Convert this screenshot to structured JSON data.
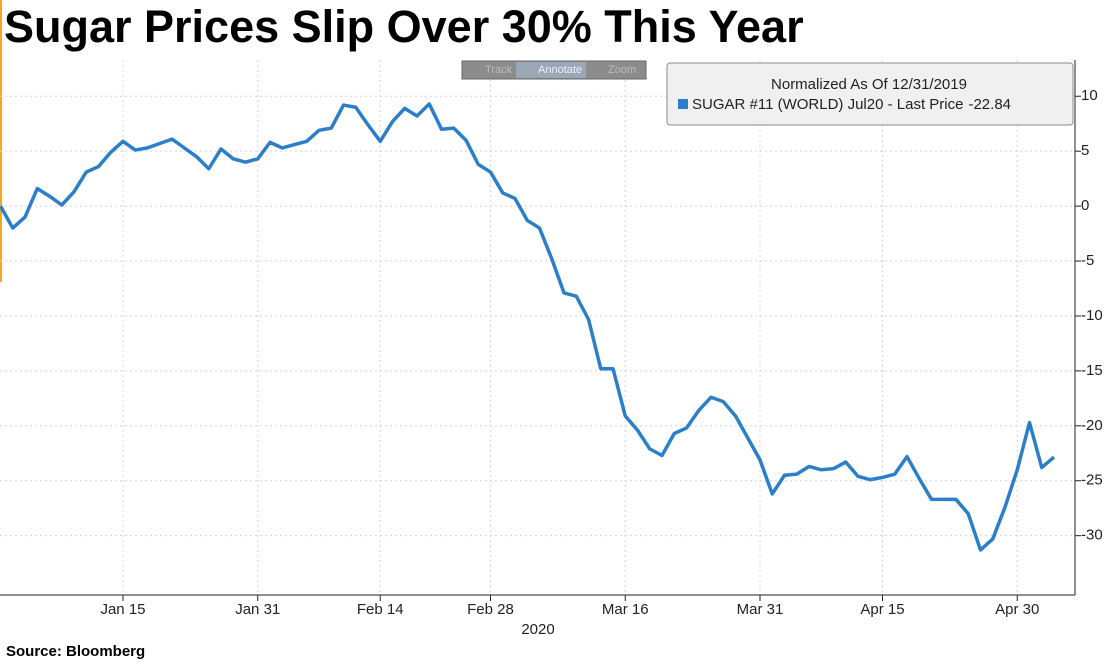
{
  "chart_data": {
    "type": "line",
    "title": "Sugar Prices Slip Over 30% This Year",
    "source": "Source: Bloomberg",
    "xlabel": "2020",
    "legend_title": "Normalized As Of 12/31/2019",
    "toolbar": [
      "Track",
      "Annotate",
      "Zoom"
    ],
    "categories": [
      null,
      null,
      null,
      null,
      null,
      null,
      null,
      null,
      null,
      null,
      "Jan 15",
      null,
      null,
      null,
      null,
      null,
      null,
      null,
      null,
      null,
      null,
      "Jan 31",
      null,
      null,
      null,
      null,
      null,
      null,
      null,
      null,
      null,
      "Feb 14",
      null,
      null,
      null,
      null,
      null,
      null,
      null,
      null,
      "Feb 28",
      null,
      null,
      null,
      null,
      null,
      null,
      null,
      null,
      null,
      null,
      "Mar 16",
      null,
      null,
      null,
      null,
      null,
      null,
      null,
      null,
      null,
      null,
      "Mar 31",
      null,
      null,
      null,
      null,
      null,
      null,
      null,
      null,
      null,
      "Apr 15",
      null,
      null,
      null,
      null,
      null,
      null,
      null,
      null,
      null,
      null,
      "Apr 30",
      null,
      null,
      null
    ],
    "series": [
      {
        "name": "SUGAR #11 (WORLD) Jul20 - Last Price",
        "color": "#2b7fc9",
        "values": [
          0,
          -2.0,
          -1.0,
          1.6,
          0.9,
          0.1,
          1.3,
          3.1,
          3.6,
          4.9,
          5.9,
          5.1,
          5.3,
          5.7,
          6.1,
          5.3,
          4.5,
          3.4,
          5.2,
          4.3,
          4.0,
          4.3,
          5.8,
          5.3,
          5.6,
          5.9,
          6.9,
          7.1,
          9.2,
          9.0,
          7.4,
          5.9,
          7.7,
          8.9,
          8.2,
          9.3,
          7.0,
          7.1,
          6.0,
          3.8,
          3.1,
          1.2,
          0.7,
          -1.3,
          -2.0,
          -4.8,
          -7.9,
          -8.2,
          -10.3,
          -14.8,
          -14.8,
          -19.1,
          -20.4,
          -22.1,
          -22.7,
          -20.7,
          -20.2,
          -18.6,
          -17.4,
          -17.8,
          -19.1,
          -21.1,
          -23.1,
          -26.2,
          -24.5,
          -24.4,
          -23.7,
          -24.0,
          -23.9,
          -23.3,
          -24.6,
          -24.9,
          -24.7,
          -24.4,
          -22.8,
          -24.8,
          -26.7,
          -26.7,
          -26.7,
          -28.0,
          -31.3,
          -30.3,
          -27.4,
          -24.0,
          -19.7,
          -23.8,
          -22.84
        ]
      }
    ],
    "ylim": [
      -35.4,
      13.3
    ],
    "yticks": [
      10,
      5,
      0,
      -5,
      -10,
      -15,
      -20,
      -25,
      -30
    ],
    "y_axis_side": "right",
    "grid": true
  }
}
